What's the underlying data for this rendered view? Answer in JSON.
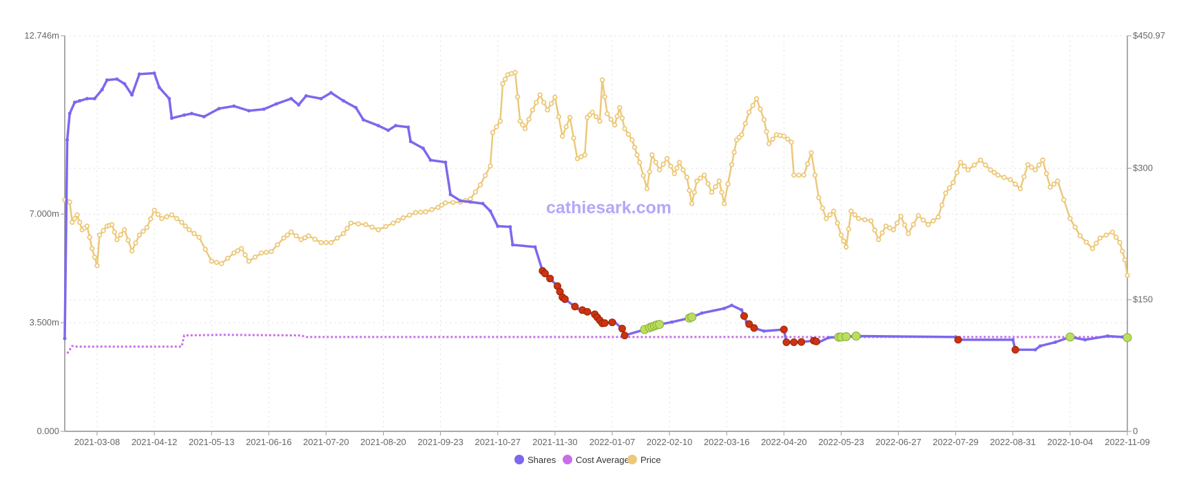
{
  "chart_data": {
    "type": "line",
    "watermark": "cathiesark.com",
    "x_axis": {
      "unit": "trading-day index (tick every 23)",
      "range": [
        -13,
        414
      ],
      "tick_labels": [
        "2021-03-08",
        "2021-04-12",
        "2021-05-13",
        "2021-06-16",
        "2021-07-20",
        "2021-08-20",
        "2021-09-23",
        "2021-10-27",
        "2021-11-30",
        "2022-01-07",
        "2022-02-10",
        "2022-03-16",
        "2022-04-20",
        "2022-05-23",
        "2022-06-27",
        "2022-07-29",
        "2022-08-31",
        "2022-10-04",
        "2022-11-09"
      ]
    },
    "y_left": {
      "range": [
        0,
        12.746
      ],
      "ticks": [
        0,
        3.5,
        7.0,
        12.746
      ],
      "tick_labels": [
        "0.000",
        "3.500m",
        "7.000m",
        "12.746m"
      ]
    },
    "y_right": {
      "range": [
        0,
        450.97
      ],
      "ticks": [
        0,
        150,
        300,
        450.97
      ],
      "tick_labels": [
        "0",
        "$150",
        "$300",
        "$450.97"
      ]
    },
    "grid": true,
    "legend_position": "bottom-center",
    "colors": {
      "shares": "#7b68ee",
      "cost": "#c86ee8",
      "price": "#ecc878",
      "sell": "#cc3311",
      "buy": "#b8e05a"
    },
    "series": [
      {
        "name": "Shares",
        "axis": "left",
        "unit": "millions",
        "step": true,
        "points": [
          [
            -13,
            2.99
          ],
          [
            -12,
            9.39
          ],
          [
            -11,
            10.24
          ],
          [
            -9,
            10.6
          ],
          [
            -7,
            10.65
          ],
          [
            -4,
            10.72
          ],
          [
            -1,
            10.72
          ],
          [
            2,
            11.01
          ],
          [
            4,
            11.32
          ],
          [
            8,
            11.35
          ],
          [
            11,
            11.2
          ],
          [
            14,
            10.84
          ],
          [
            17,
            11.51
          ],
          [
            23,
            11.54
          ],
          [
            25,
            11.08
          ],
          [
            29,
            10.72
          ],
          [
            30,
            10.09
          ],
          [
            35,
            10.19
          ],
          [
            38,
            10.24
          ],
          [
            43,
            10.14
          ],
          [
            49,
            10.4
          ],
          [
            55,
            10.48
          ],
          [
            61,
            10.33
          ],
          [
            67,
            10.38
          ],
          [
            72,
            10.55
          ],
          [
            78,
            10.72
          ],
          [
            81,
            10.52
          ],
          [
            84,
            10.81
          ],
          [
            90,
            10.72
          ],
          [
            94,
            10.91
          ],
          [
            99,
            10.65
          ],
          [
            104,
            10.43
          ],
          [
            107,
            10.04
          ],
          [
            113,
            9.85
          ],
          [
            117,
            9.7
          ],
          [
            120,
            9.85
          ],
          [
            125,
            9.8
          ],
          [
            126,
            9.34
          ],
          [
            131,
            9.12
          ],
          [
            134,
            8.74
          ],
          [
            140,
            8.67
          ],
          [
            142,
            7.63
          ],
          [
            146,
            7.43
          ],
          [
            150,
            7.39
          ],
          [
            155,
            7.34
          ],
          [
            158,
            7.1
          ],
          [
            161,
            6.61
          ],
          [
            166,
            6.59
          ],
          [
            167,
            6.01
          ],
          [
            176,
            5.94
          ],
          [
            179,
            5.17
          ],
          [
            185,
            4.68
          ],
          [
            187,
            4.32
          ],
          [
            193,
            3.96
          ],
          [
            200,
            3.77
          ],
          [
            203,
            3.48
          ],
          [
            208,
            3.52
          ],
          [
            211,
            3.31
          ],
          [
            212,
            3.09
          ],
          [
            220,
            3.28
          ],
          [
            225,
            3.43
          ],
          [
            231,
            3.52
          ],
          [
            238,
            3.65
          ],
          [
            243,
            3.81
          ],
          [
            252,
            3.96
          ],
          [
            255,
            4.06
          ],
          [
            259,
            3.91
          ],
          [
            261,
            3.52
          ],
          [
            264,
            3.33
          ],
          [
            268,
            3.23
          ],
          [
            276,
            3.28
          ],
          [
            277,
            2.87
          ],
          [
            282,
            2.87
          ],
          [
            288,
            2.92
          ],
          [
            290,
            2.87
          ],
          [
            294,
            3.02
          ],
          [
            299,
            3.04
          ],
          [
            305,
            3.07
          ],
          [
            345,
            3.04
          ],
          [
            346,
            2.95
          ],
          [
            368,
            2.95
          ],
          [
            369,
            2.63
          ],
          [
            377,
            2.63
          ],
          [
            379,
            2.75
          ],
          [
            385,
            2.87
          ],
          [
            391,
            3.04
          ],
          [
            397,
            2.95
          ],
          [
            406,
            3.07
          ],
          [
            412,
            3.04
          ],
          [
            414,
            3.02
          ]
        ]
      },
      {
        "name": "Cost Average",
        "axis": "left",
        "unit": "millions",
        "points": [
          [
            -12,
            2.51
          ],
          [
            -10,
            2.75
          ],
          [
            -8,
            2.73
          ],
          [
            0,
            2.73
          ],
          [
            34,
            2.73
          ],
          [
            35,
            3.09
          ],
          [
            50,
            3.11
          ],
          [
            82,
            3.09
          ],
          [
            84,
            3.04
          ],
          [
            414,
            3.04
          ]
        ]
      },
      {
        "name": "Price",
        "axis": "right",
        "unit": "USD",
        "points": [
          [
            -13,
            263.9
          ],
          [
            -11,
            261.4
          ],
          [
            -10,
            238.3
          ],
          [
            -8,
            246.8
          ],
          [
            -6,
            229.8
          ],
          [
            -4,
            234.0
          ],
          [
            -2,
            208.4
          ],
          [
            0,
            188.8
          ],
          [
            1,
            223.8
          ],
          [
            4,
            234.0
          ],
          [
            6,
            235.7
          ],
          [
            8,
            218.6
          ],
          [
            11,
            229.8
          ],
          [
            14,
            205.8
          ],
          [
            17,
            223.8
          ],
          [
            20,
            232.3
          ],
          [
            23,
            252.0
          ],
          [
            26,
            242.6
          ],
          [
            30,
            246.8
          ],
          [
            34,
            238.3
          ],
          [
            37,
            229.8
          ],
          [
            41,
            221.2
          ],
          [
            46,
            193.9
          ],
          [
            50,
            191.3
          ],
          [
            55,
            203.3
          ],
          [
            58,
            208.4
          ],
          [
            61,
            193.9
          ],
          [
            66,
            203.3
          ],
          [
            70,
            205.0
          ],
          [
            75,
            220.4
          ],
          [
            78,
            227.2
          ],
          [
            82,
            218.6
          ],
          [
            85,
            222.9
          ],
          [
            90,
            215.2
          ],
          [
            94,
            215.2
          ],
          [
            99,
            225.5
          ],
          [
            102,
            237.4
          ],
          [
            108,
            235.7
          ],
          [
            113,
            229.8
          ],
          [
            119,
            237.4
          ],
          [
            123,
            243.4
          ],
          [
            128,
            249.4
          ],
          [
            132,
            250.3
          ],
          [
            137,
            255.4
          ],
          [
            140,
            260.5
          ],
          [
            146,
            261.4
          ],
          [
            150,
            264.8
          ],
          [
            154,
            281.0
          ],
          [
            158,
            302.4
          ],
          [
            159,
            340.8
          ],
          [
            162,
            353.6
          ],
          [
            163,
            396.3
          ],
          [
            165,
            406.5
          ],
          [
            168,
            409.1
          ],
          [
            170,
            353.6
          ],
          [
            172,
            345.1
          ],
          [
            175,
            366.4
          ],
          [
            178,
            383.5
          ],
          [
            181,
            366.4
          ],
          [
            184,
            380.9
          ],
          [
            187,
            336.5
          ],
          [
            190,
            357.9
          ],
          [
            193,
            310.9
          ],
          [
            196,
            315.2
          ],
          [
            197,
            357.9
          ],
          [
            199,
            363.8
          ],
          [
            202,
            353.6
          ],
          [
            203,
            400.6
          ],
          [
            205,
            362.1
          ],
          [
            208,
            349.3
          ],
          [
            210,
            369.0
          ],
          [
            212,
            345.1
          ],
          [
            215,
            332.2
          ],
          [
            217,
            315.2
          ],
          [
            218,
            306.6
          ],
          [
            221,
            276.7
          ],
          [
            223,
            315.2
          ],
          [
            226,
            298.1
          ],
          [
            229,
            310.9
          ],
          [
            232,
            293.8
          ],
          [
            234,
            306.6
          ],
          [
            237,
            289.6
          ],
          [
            239,
            259.7
          ],
          [
            241,
            285.3
          ],
          [
            244,
            292.1
          ],
          [
            247,
            272.5
          ],
          [
            250,
            285.3
          ],
          [
            252,
            259.7
          ],
          [
            255,
            304.1
          ],
          [
            257,
            332.2
          ],
          [
            259,
            338.2
          ],
          [
            262,
            363.8
          ],
          [
            265,
            379.2
          ],
          [
            268,
            355.3
          ],
          [
            270,
            328.0
          ],
          [
            273,
            338.2
          ],
          [
            276,
            336.5
          ],
          [
            279,
            329.7
          ],
          [
            280,
            292.1
          ],
          [
            284,
            292.1
          ],
          [
            287,
            317.7
          ],
          [
            290,
            266.5
          ],
          [
            293,
            242.6
          ],
          [
            296,
            251.1
          ],
          [
            299,
            223.8
          ],
          [
            301,
            210.1
          ],
          [
            303,
            251.1
          ],
          [
            306,
            242.6
          ],
          [
            311,
            240.0
          ],
          [
            314,
            218.6
          ],
          [
            317,
            234.0
          ],
          [
            320,
            229.8
          ],
          [
            323,
            245.1
          ],
          [
            326,
            225.5
          ],
          [
            330,
            246.0
          ],
          [
            334,
            235.7
          ],
          [
            338,
            244.3
          ],
          [
            341,
            271.6
          ],
          [
            344,
            283.6
          ],
          [
            347,
            306.6
          ],
          [
            350,
            298.1
          ],
          [
            355,
            309.2
          ],
          [
            359,
            298.1
          ],
          [
            362,
            292.1
          ],
          [
            367,
            287.0
          ],
          [
            371,
            276.7
          ],
          [
            374,
            304.1
          ],
          [
            377,
            298.1
          ],
          [
            380,
            309.2
          ],
          [
            383,
            278.4
          ],
          [
            386,
            285.3
          ],
          [
            391,
            242.6
          ],
          [
            395,
            222.9
          ],
          [
            400,
            208.4
          ],
          [
            403,
            220.4
          ],
          [
            408,
            227.2
          ],
          [
            411,
            215.2
          ],
          [
            413,
            195.6
          ],
          [
            414,
            177.7
          ]
        ]
      }
    ],
    "transactions": {
      "sell_x": [
        179,
        180,
        182,
        185,
        186,
        187,
        188,
        192,
        195,
        197,
        200,
        201,
        202,
        203,
        204,
        207,
        211,
        212,
        260,
        262,
        264,
        276,
        277,
        280,
        283,
        288,
        289,
        346,
        369
      ],
      "buy_x": [
        220,
        222,
        223,
        224,
        225,
        226,
        238,
        239,
        298,
        299,
        301,
        305,
        391,
        414
      ]
    },
    "legend": [
      "Shares",
      "Cost Average",
      "Price"
    ]
  }
}
